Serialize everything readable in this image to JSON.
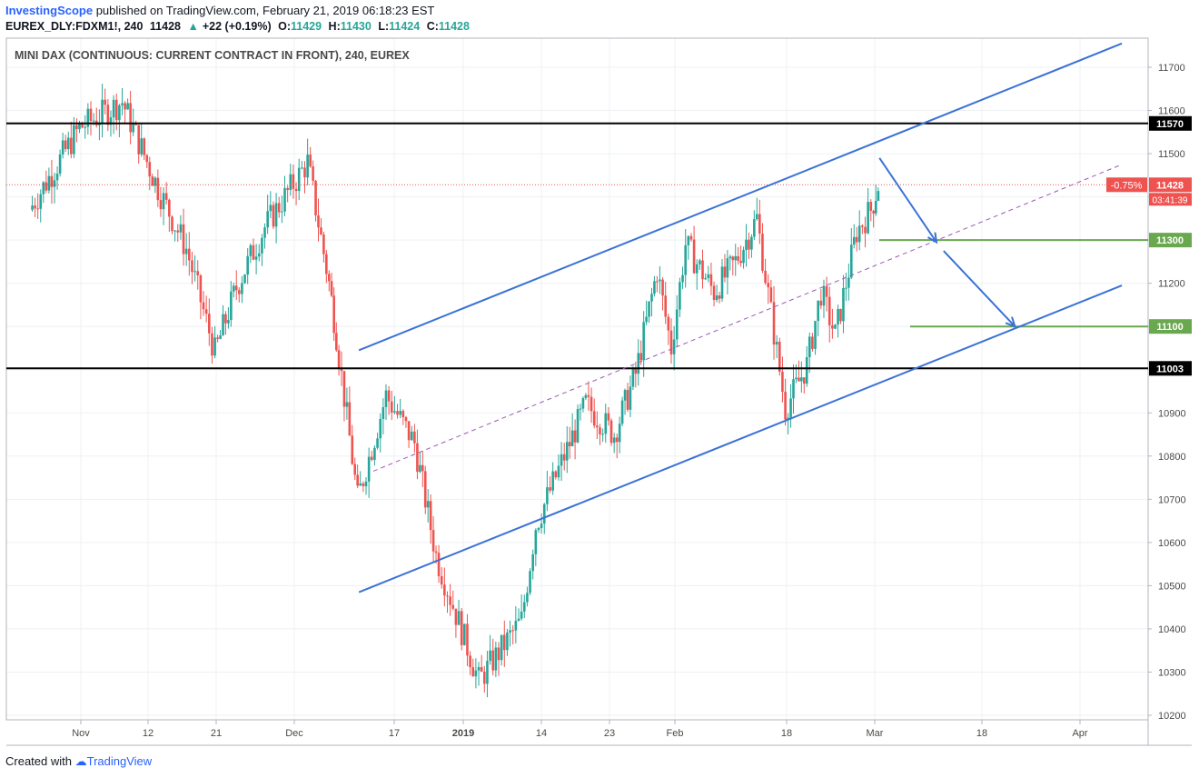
{
  "header": {
    "publisher": "InvestingScope",
    "published_text": "published on TradingView.com, February 21, 2019 06:18:23 EST",
    "symbol": "EUREX_DLY:FDXM1!, 240",
    "last": "11428",
    "change_arrow": "▲",
    "change": "+22 (+0.19%)",
    "o_label": "O:",
    "o_value": "11429",
    "h_label": "H:",
    "h_value": "11430",
    "l_label": "L:",
    "l_value": "11424",
    "c_label": "C:",
    "c_value": "11428"
  },
  "footer": {
    "created_with": "Created with",
    "brand": "TradingView"
  },
  "chart_data": {
    "type": "candlestick",
    "title": "MINI DAX (CONTINUOUS: CURRENT CONTRACT IN FRONT), 240, EUREX",
    "ylim": [
      10200,
      11750
    ],
    "y_ticks": [
      "10200",
      "10300",
      "10400",
      "10500",
      "10600",
      "10700",
      "10800",
      "10900",
      "11000",
      "11100",
      "11200",
      "11300",
      "11400",
      "11500",
      "11600",
      "11700"
    ],
    "x_ticks": [
      "Nov",
      "12",
      "21",
      "Dec",
      "17",
      "2019",
      "14",
      "23",
      "Feb",
      "18",
      "Mar",
      "18",
      "Apr"
    ],
    "levels": [
      {
        "value": 11570,
        "label": "11570",
        "color": "#000000"
      },
      {
        "value": 11003,
        "label": "11003",
        "color": "#000000"
      },
      {
        "value": 11300,
        "label": "11300",
        "color": "#6aa84f"
      },
      {
        "value": 11100,
        "label": "11100",
        "color": "#6aa84f"
      }
    ],
    "current_price": {
      "value": 11428,
      "label": "11428",
      "change_label": "-0.75%",
      "countdown": "03:41:39"
    },
    "channel": {
      "upper": [
        [
          "Dec 10",
          11045
        ],
        [
          "Mar 27",
          11755
        ]
      ],
      "lower": [
        [
          "Dec 10",
          10485
        ],
        [
          "Mar 27",
          11195
        ]
      ],
      "mid": [
        [
          "Dec 12",
          10765
        ],
        [
          "Mar 27",
          11475
        ]
      ]
    },
    "projection_arrows": [
      [
        [
          "Feb 21",
          11490
        ],
        [
          "Mar 1",
          11295
        ]
      ],
      [
        [
          "Mar 2",
          11275
        ],
        [
          "Mar 12",
          11100
        ]
      ]
    ],
    "candles_summary": [
      {
        "date": "Oct 25",
        "close": 11370
      },
      {
        "date": "Nov 1",
        "close": 11560
      },
      {
        "date": "Nov 7",
        "close": 11620
      },
      {
        "date": "Nov 12",
        "close": 11420
      },
      {
        "date": "Nov 16",
        "close": 11280
      },
      {
        "date": "Nov 20",
        "close": 11040
      },
      {
        "date": "Nov 23",
        "close": 11190
      },
      {
        "date": "Nov 27",
        "close": 11330
      },
      {
        "date": "Dec 3",
        "close": 11480
      },
      {
        "date": "Dec 6",
        "close": 11200
      },
      {
        "date": "Dec 7",
        "close": 11080
      },
      {
        "date": "Dec 10",
        "close": 10700
      },
      {
        "date": "Dec 14",
        "close": 10940
      },
      {
        "date": "Dec 18",
        "close": 10830
      },
      {
        "date": "Dec 21",
        "close": 10570
      },
      {
        "date": "Dec 27",
        "close": 10280
      },
      {
        "date": "Jan 2",
        "close": 10420
      },
      {
        "date": "Jan 4",
        "close": 10640
      },
      {
        "date": "Jan 8",
        "close": 10800
      },
      {
        "date": "Jan 11",
        "close": 10920
      },
      {
        "date": "Jan 15",
        "close": 10850
      },
      {
        "date": "Jan 18",
        "close": 10990
      },
      {
        "date": "Jan 21",
        "close": 11230
      },
      {
        "date": "Jan 23",
        "close": 11050
      },
      {
        "date": "Jan 25",
        "close": 11290
      },
      {
        "date": "Jan 29",
        "close": 11180
      },
      {
        "date": "Feb 1",
        "close": 11250
      },
      {
        "date": "Feb 4",
        "close": 11350
      },
      {
        "date": "Feb 6",
        "close": 11130
      },
      {
        "date": "Feb 8",
        "close": 10910
      },
      {
        "date": "Feb 11",
        "close": 11010
      },
      {
        "date": "Feb 13",
        "close": 11180
      },
      {
        "date": "Feb 15",
        "close": 11080
      },
      {
        "date": "Feb 18",
        "close": 11320
      },
      {
        "date": "Feb 20",
        "close": 11370
      },
      {
        "date": "Feb 21",
        "close": 11428
      }
    ]
  },
  "colors": {
    "up": "#26a69a",
    "down": "#ef5350",
    "channel": "#3a72d6",
    "mid_dashed": "#9b59b6",
    "level_black": "#000000",
    "level_green": "#6aa84f",
    "price_label": "#ef5350"
  }
}
